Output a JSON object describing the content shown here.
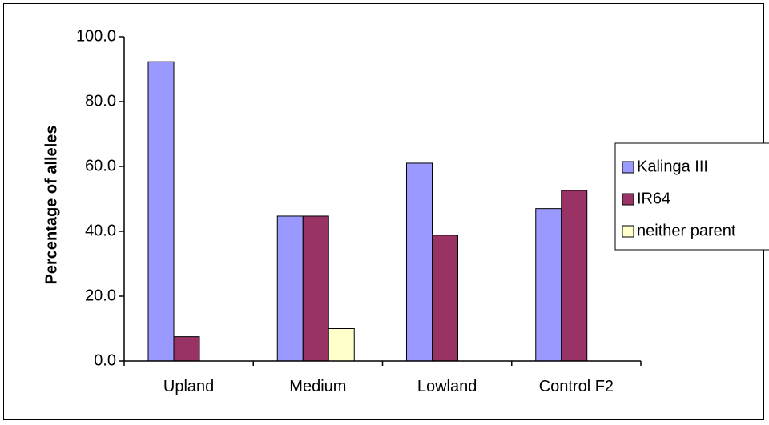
{
  "chart_data": {
    "type": "bar",
    "title": "",
    "xlabel": "",
    "ylabel": "Percentage of alleles",
    "ylim": [
      0,
      100
    ],
    "yticks": [
      "0.0",
      "20.0",
      "40.0",
      "60.0",
      "80.0",
      "100.0"
    ],
    "categories": [
      "Upland",
      "Medium",
      "Lowland",
      "Control F2"
    ],
    "series": [
      {
        "name": "Kalinga III",
        "color": "#9999ff",
        "values": [
          92.3,
          44.7,
          61.0,
          47.0
        ]
      },
      {
        "name": "IR64",
        "color": "#993366",
        "values": [
          7.5,
          44.7,
          38.8,
          52.6
        ]
      },
      {
        "name": "neither parent",
        "color": "#ffffcc",
        "values": [
          0,
          10.0,
          0,
          0
        ]
      }
    ],
    "legend_position": "right",
    "grid": false
  }
}
